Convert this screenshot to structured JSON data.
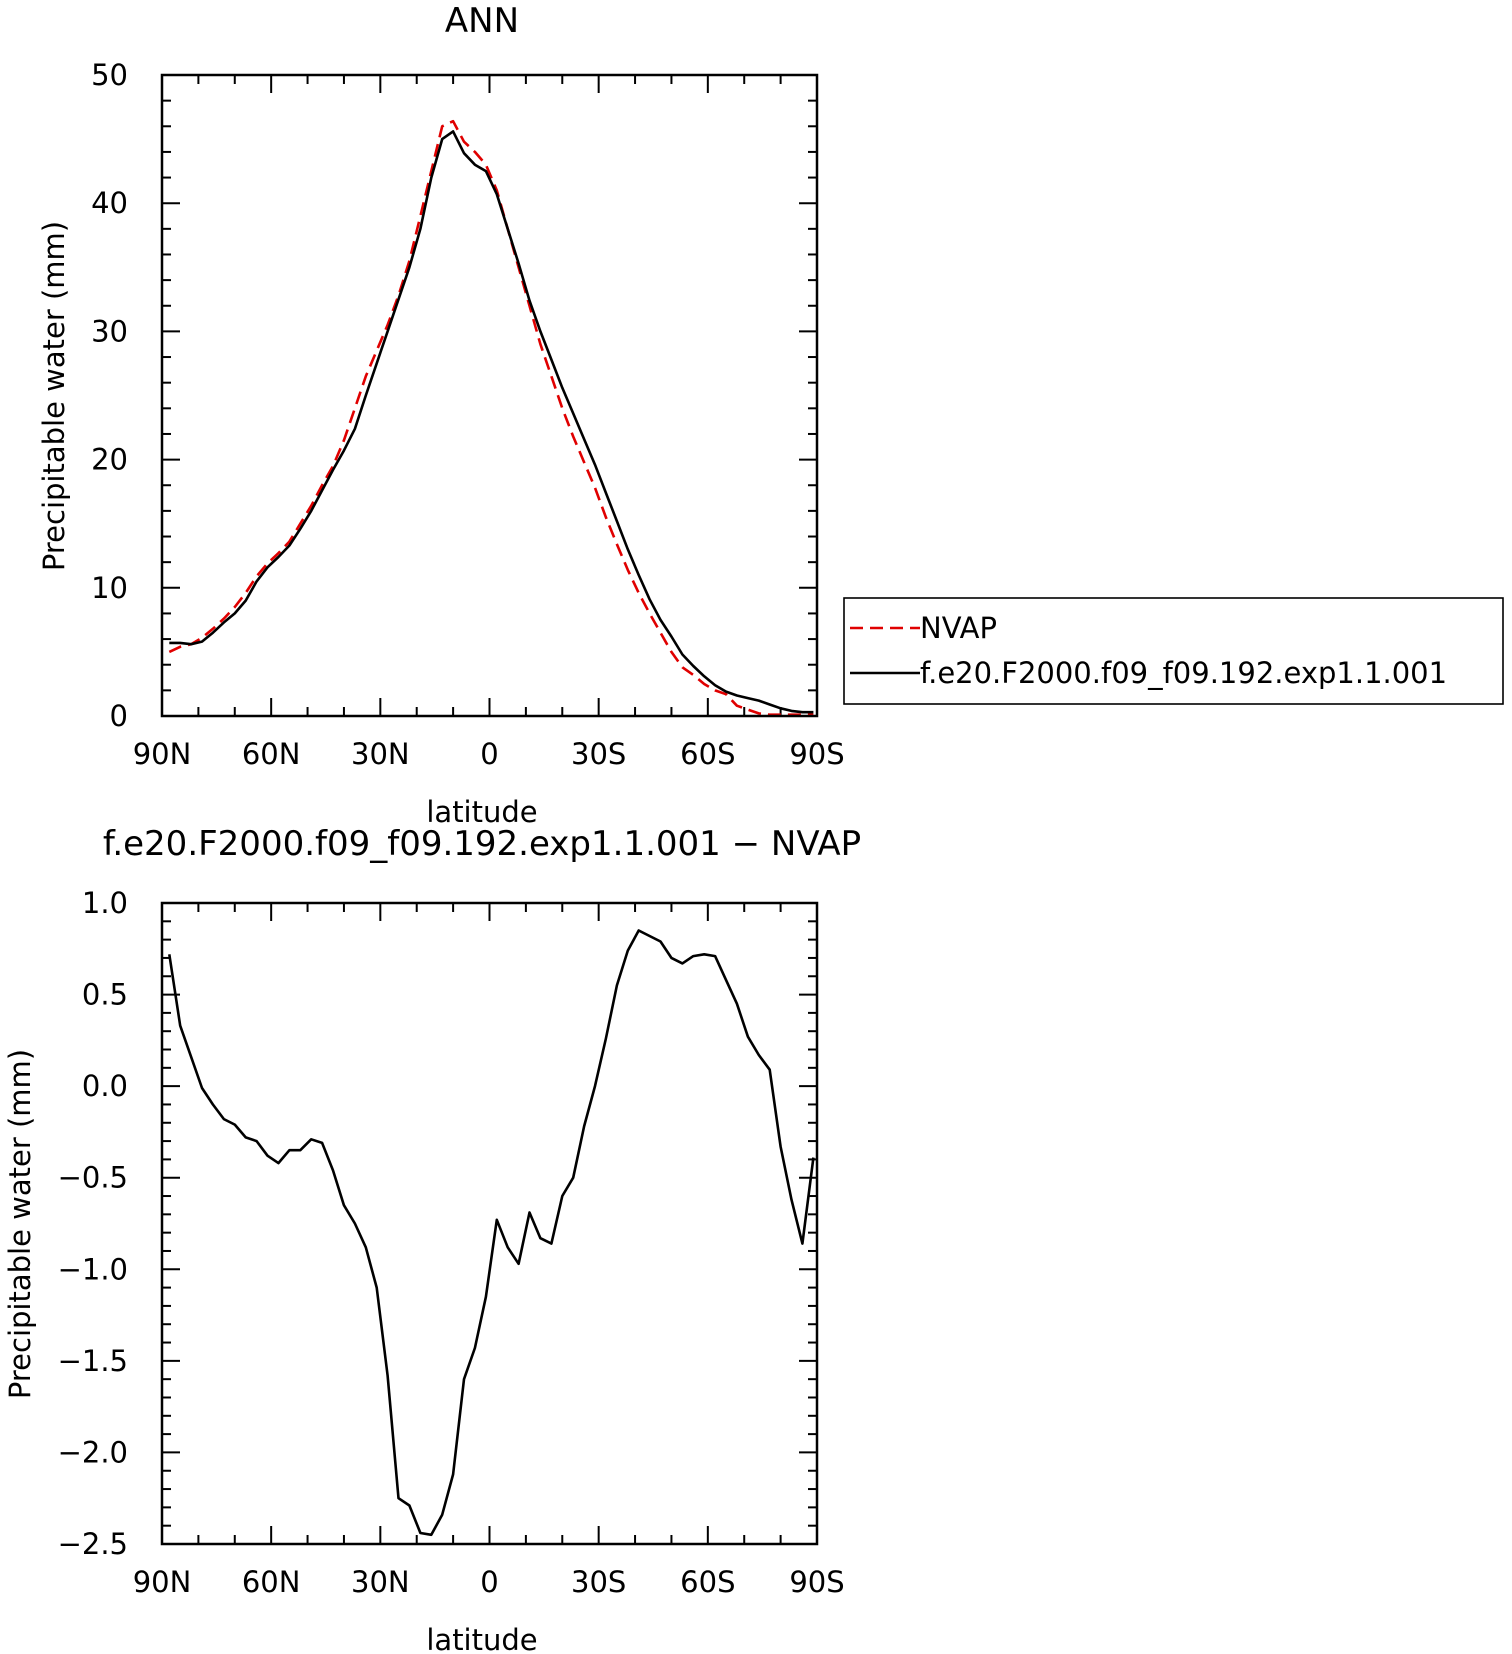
{
  "chart_data": [
    {
      "type": "line",
      "title": "ANN",
      "xlabel": "latitude",
      "ylabel": "Precipitable water (mm)",
      "xlim": [
        90,
        -90
      ],
      "ylim": [
        0,
        50
      ],
      "xticks": [
        90,
        60,
        30,
        0,
        -30,
        -60,
        -90
      ],
      "xtick_labels": [
        "90N",
        "60N",
        "30N",
        "0",
        "30S",
        "60S",
        "90S"
      ],
      "yticks": [
        0,
        10,
        20,
        30,
        40,
        50
      ],
      "ytick_labels": [
        "0",
        "10",
        "20",
        "30",
        "40",
        "50"
      ],
      "legend_position": "right",
      "series": [
        {
          "name": "NVAP",
          "color": "#e00000",
          "dash": "dashed",
          "x": [
            88,
            85,
            82,
            79,
            76,
            73,
            70,
            67,
            64,
            61,
            58,
            55,
            52,
            49,
            46,
            43,
            40,
            37,
            34,
            31,
            28,
            25,
            22,
            19,
            16,
            13,
            10,
            7,
            4,
            1,
            -2,
            -5,
            -8,
            -11,
            -14,
            -17,
            -20,
            -23,
            -26,
            -29,
            -32,
            -35,
            -38,
            -41,
            -44,
            -47,
            -50,
            -53,
            -56,
            -59,
            -62,
            -65,
            -68,
            -71,
            -74,
            -77,
            -80,
            -83,
            -86,
            -89
          ],
          "y": [
            5.0,
            5.4,
            5.6,
            6.1,
            6.8,
            7.6,
            8.5,
            9.6,
            10.9,
            11.9,
            12.7,
            13.6,
            15.0,
            16.4,
            18.0,
            19.5,
            21.5,
            24.0,
            26.5,
            28.5,
            30.5,
            32.8,
            35.5,
            39.0,
            42.5,
            46.0,
            46.4,
            44.8,
            44.0,
            43.0,
            41.0,
            38.0,
            35.0,
            32.0,
            29.0,
            26.5,
            24.0,
            21.8,
            19.8,
            17.8,
            15.5,
            13.4,
            11.4,
            9.6,
            8.0,
            6.5,
            5.0,
            3.8,
            3.2,
            2.5,
            2.0,
            1.7,
            0.8,
            0.5,
            0.2,
            0.1,
            0.1,
            0.1,
            0.1,
            0.1
          ]
        },
        {
          "name": "f.e20.F2000.f09_f09.192.exp1.1.001",
          "color": "#000000",
          "dash": "solid",
          "x": [
            88,
            85,
            82,
            79,
            76,
            73,
            70,
            67,
            64,
            61,
            58,
            55,
            52,
            49,
            46,
            43,
            40,
            37,
            34,
            31,
            28,
            25,
            22,
            19,
            16,
            13,
            10,
            7,
            4,
            1,
            -2,
            -5,
            -8,
            -11,
            -14,
            -17,
            -20,
            -23,
            -26,
            -29,
            -32,
            -35,
            -38,
            -41,
            -44,
            -47,
            -50,
            -53,
            -56,
            -59,
            -62,
            -65,
            -68,
            -71,
            -74,
            -77,
            -80,
            -83,
            -86,
            -89
          ],
          "y": [
            5.7,
            5.7,
            5.6,
            5.8,
            6.5,
            7.3,
            8.0,
            9.0,
            10.5,
            11.6,
            12.4,
            13.3,
            14.6,
            16.0,
            17.6,
            19.2,
            20.7,
            22.4,
            25.0,
            27.5,
            30.0,
            32.5,
            35.0,
            38.0,
            42.0,
            45.0,
            45.6,
            43.9,
            43.0,
            42.5,
            40.7,
            38.0,
            35.3,
            32.4,
            30.0,
            27.8,
            25.6,
            23.6,
            21.6,
            19.6,
            17.4,
            15.2,
            13.0,
            11.0,
            9.1,
            7.5,
            6.2,
            4.8,
            3.9,
            3.1,
            2.4,
            1.9,
            1.6,
            1.4,
            1.2,
            0.9,
            0.6,
            0.4,
            0.3,
            0.3
          ]
        }
      ]
    },
    {
      "type": "line",
      "title": "f.e20.F2000.f09_f09.192.exp1.1.001 − NVAP",
      "xlabel": "latitude",
      "ylabel": "Precipitable water (mm)",
      "xlim": [
        90,
        -90
      ],
      "ylim": [
        -2.5,
        1.0
      ],
      "xticks": [
        90,
        60,
        30,
        0,
        -30,
        -60,
        -90
      ],
      "xtick_labels": [
        "90N",
        "60N",
        "30N",
        "0",
        "30S",
        "60S",
        "90S"
      ],
      "yticks": [
        1.0,
        0.5,
        0.0,
        -0.5,
        -1.0,
        -1.5,
        -2.0,
        -2.5
      ],
      "ytick_labels": [
        "1.0",
        "0.5",
        "0.0",
        "−0.5",
        "−1.0",
        "−1.5",
        "−2.0",
        "−2.5"
      ],
      "series": [
        {
          "color": "#000000",
          "dash": "solid",
          "x": [
            88,
            85,
            82,
            79,
            76,
            73,
            70,
            67,
            64,
            61,
            58,
            55,
            52,
            49,
            46,
            43,
            40,
            37,
            34,
            31,
            28,
            25,
            22,
            19,
            16,
            13,
            10,
            7,
            4,
            1,
            -2,
            -5,
            -8,
            -11,
            -14,
            -17,
            -20,
            -23,
            -26,
            -29,
            -32,
            -35,
            -38,
            -41,
            -44,
            -47,
            -50,
            -53,
            -56,
            -59,
            -62,
            -65,
            -68,
            -71,
            -74,
            -77,
            -80,
            -83,
            -86,
            -89
          ],
          "y": [
            0.72,
            0.33,
            0.16,
            -0.01,
            -0.1,
            -0.18,
            -0.21,
            -0.28,
            -0.3,
            -0.38,
            -0.42,
            -0.35,
            -0.35,
            -0.29,
            -0.31,
            -0.46,
            -0.65,
            -0.75,
            -0.88,
            -1.1,
            -1.58,
            -2.25,
            -2.29,
            -2.44,
            -2.45,
            -2.34,
            -2.12,
            -1.6,
            -1.43,
            -1.15,
            -0.73,
            -0.88,
            -0.97,
            -0.69,
            -0.83,
            -0.86,
            -0.6,
            -0.5,
            -0.22,
            0.0,
            0.26,
            0.55,
            0.74,
            0.85,
            0.82,
            0.79,
            0.7,
            0.67,
            0.71,
            0.72,
            0.71,
            0.58,
            0.45,
            0.27,
            0.17,
            0.09,
            -0.33,
            -0.62,
            -0.86,
            -0.39
          ]
        }
      ]
    }
  ]
}
